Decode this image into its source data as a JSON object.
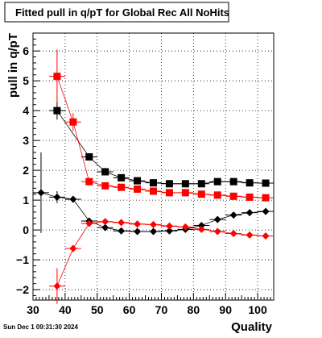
{
  "timestamp": "Sun Dec  1 09:31:30 2024",
  "chart_data": {
    "type": "scatter",
    "title": "Fitted pull in q/pT for Global Rec All NoHits",
    "xlabel": "Quality",
    "ylabel": "pull in q/pT",
    "xlim": [
      30,
      105
    ],
    "ylim": [
      -2.35,
      6.6
    ],
    "x_ticks": [
      30,
      40,
      50,
      60,
      70,
      80,
      90,
      100
    ],
    "y_ticks": [
      -2,
      -1,
      0,
      1,
      2,
      3,
      4,
      5,
      6
    ],
    "grid": true,
    "legend": "none",
    "series": [
      {
        "color": "#000000",
        "marker": "square",
        "connected": true,
        "points": [
          {
            "x": 37.5,
            "y": 4.0,
            "err": 0.3
          },
          {
            "x": 47.5,
            "y": 2.45,
            "err": 0.08
          },
          {
            "x": 52.5,
            "y": 1.95,
            "err": 0.06
          },
          {
            "x": 57.5,
            "y": 1.75,
            "err": 0.05
          },
          {
            "x": 62.5,
            "y": 1.65,
            "err": 0.05
          },
          {
            "x": 67.5,
            "y": 1.58,
            "err": 0.04
          },
          {
            "x": 72.5,
            "y": 1.55,
            "err": 0.04
          },
          {
            "x": 77.5,
            "y": 1.55,
            "err": 0.04
          },
          {
            "x": 82.5,
            "y": 1.55,
            "err": 0.04
          },
          {
            "x": 87.5,
            "y": 1.62,
            "err": 0.04
          },
          {
            "x": 92.5,
            "y": 1.62,
            "err": 0.04
          },
          {
            "x": 97.5,
            "y": 1.58,
            "err": 0.04
          },
          {
            "x": 102.5,
            "y": 1.57,
            "err": 0.04
          }
        ]
      },
      {
        "color": "#ff0000",
        "marker": "square",
        "connected": true,
        "points": [
          {
            "x": 37.5,
            "y": 5.15,
            "err": 0.9
          },
          {
            "x": 42.5,
            "y": 3.62,
            "err": 0.3
          },
          {
            "x": 47.5,
            "y": 1.62,
            "err": 0.06
          },
          {
            "x": 52.5,
            "y": 1.48,
            "err": 0.05
          },
          {
            "x": 57.5,
            "y": 1.43,
            "err": 0.05
          },
          {
            "x": 62.5,
            "y": 1.37,
            "err": 0.05
          },
          {
            "x": 67.5,
            "y": 1.3,
            "err": 0.04
          },
          {
            "x": 72.5,
            "y": 1.25,
            "err": 0.04
          },
          {
            "x": 77.5,
            "y": 1.25,
            "err": 0.04
          },
          {
            "x": 82.5,
            "y": 1.2,
            "err": 0.04
          },
          {
            "x": 87.5,
            "y": 1.17,
            "err": 0.04
          },
          {
            "x": 92.5,
            "y": 1.13,
            "err": 0.04
          },
          {
            "x": 97.5,
            "y": 1.1,
            "err": 0.04
          },
          {
            "x": 102.5,
            "y": 1.08,
            "err": 0.04
          }
        ]
      },
      {
        "color": "#000000",
        "marker": "diamond",
        "connected": true,
        "points": [
          {
            "x": 32.5,
            "y": 1.25,
            "err": 1.35
          },
          {
            "x": 37.5,
            "y": 1.1,
            "err": 0.2
          },
          {
            "x": 42.5,
            "y": 1.03,
            "err": 0.08
          },
          {
            "x": 47.5,
            "y": 0.3,
            "err": 0.05
          },
          {
            "x": 52.5,
            "y": 0.08,
            "err": 0.04
          },
          {
            "x": 57.5,
            "y": -0.03,
            "err": 0.04
          },
          {
            "x": 62.5,
            "y": -0.05,
            "err": 0.04
          },
          {
            "x": 67.5,
            "y": -0.05,
            "err": 0.04
          },
          {
            "x": 72.5,
            "y": -0.03,
            "err": 0.04
          },
          {
            "x": 77.5,
            "y": 0.02,
            "err": 0.04
          },
          {
            "x": 82.5,
            "y": 0.15,
            "err": 0.04
          },
          {
            "x": 87.5,
            "y": 0.35,
            "err": 0.04
          },
          {
            "x": 92.5,
            "y": 0.5,
            "err": 0.04
          },
          {
            "x": 97.5,
            "y": 0.58,
            "err": 0.04
          },
          {
            "x": 102.5,
            "y": 0.62,
            "err": 0.04
          }
        ]
      },
      {
        "color": "#ff0000",
        "marker": "diamond",
        "connected": true,
        "points": [
          {
            "x": 37.5,
            "y": -1.88,
            "err": 0.6
          },
          {
            "x": 42.5,
            "y": -0.62,
            "err": 0.12
          },
          {
            "x": 47.5,
            "y": 0.22,
            "err": 0.05
          },
          {
            "x": 52.5,
            "y": 0.28,
            "err": 0.04
          },
          {
            "x": 57.5,
            "y": 0.25,
            "err": 0.04
          },
          {
            "x": 62.5,
            "y": 0.2,
            "err": 0.04
          },
          {
            "x": 67.5,
            "y": 0.18,
            "err": 0.04
          },
          {
            "x": 72.5,
            "y": 0.13,
            "err": 0.04
          },
          {
            "x": 77.5,
            "y": 0.1,
            "err": 0.04
          },
          {
            "x": 82.5,
            "y": 0.02,
            "err": 0.04
          },
          {
            "x": 87.5,
            "y": -0.05,
            "err": 0.04
          },
          {
            "x": 92.5,
            "y": -0.12,
            "err": 0.04
          },
          {
            "x": 97.5,
            "y": -0.17,
            "err": 0.04
          },
          {
            "x": 102.5,
            "y": -0.2,
            "err": 0.04
          }
        ]
      }
    ]
  }
}
